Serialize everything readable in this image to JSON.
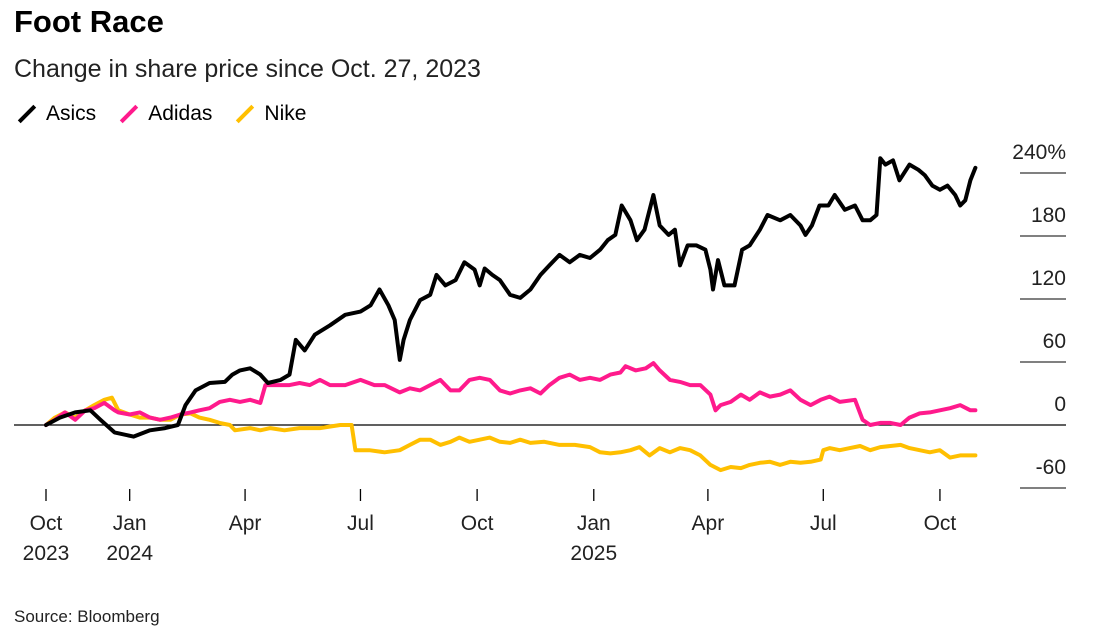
{
  "colors": {
    "Asics": "#000000",
    "Adidas": "#ff1a8c",
    "Nike": "#ffbf00"
  },
  "chart_data": {
    "type": "line",
    "title": "Foot Race",
    "subtitle": "Change in share price since Oct. 27, 2023",
    "source": "Source: Bloomberg",
    "x_unit": "days since Oct. 27, 2023",
    "ylabel": "",
    "ylim": [
      -60,
      240
    ],
    "yticks": [
      {
        "v": 240,
        "label": "240%"
      },
      {
        "v": 180,
        "label": "180"
      },
      {
        "v": 120,
        "label": "120"
      },
      {
        "v": 60,
        "label": "60"
      },
      {
        "v": 0,
        "label": "0"
      },
      {
        "v": -60,
        "label": "-60"
      }
    ],
    "xticks": [
      {
        "d": 0,
        "l1": "Oct",
        "l2": "2023"
      },
      {
        "d": 66,
        "l1": "Jan",
        "l2": "2024"
      },
      {
        "d": 157,
        "l1": "Apr",
        "l2": ""
      },
      {
        "d": 248,
        "l1": "Jul",
        "l2": ""
      },
      {
        "d": 340,
        "l1": "Oct",
        "l2": ""
      },
      {
        "d": 432,
        "l1": "Jan",
        "l2": "2025"
      },
      {
        "d": 522,
        "l1": "Apr",
        "l2": ""
      },
      {
        "d": 613,
        "l1": "Jul",
        "l2": ""
      },
      {
        "d": 705,
        "l1": "Oct",
        "l2": ""
      }
    ],
    "legend": [
      "Asics",
      "Adidas",
      "Nike"
    ],
    "legend_position": "top-left",
    "series": [
      {
        "name": "Nike",
        "points": [
          [
            0,
            0
          ],
          [
            7,
            7
          ],
          [
            15,
            12
          ],
          [
            23,
            7
          ],
          [
            31,
            14
          ],
          [
            38,
            19
          ],
          [
            46,
            24
          ],
          [
            52,
            26
          ],
          [
            57,
            14
          ],
          [
            66,
            10
          ],
          [
            74,
            7
          ],
          [
            82,
            7
          ],
          [
            90,
            5
          ],
          [
            98,
            5
          ],
          [
            106,
            10
          ],
          [
            114,
            11
          ],
          [
            121,
            7
          ],
          [
            129,
            5
          ],
          [
            137,
            2
          ],
          [
            145,
            0
          ],
          [
            149,
            -5
          ],
          [
            161,
            -3
          ],
          [
            169,
            -5
          ],
          [
            177,
            -3
          ],
          [
            188,
            -5
          ],
          [
            200,
            -3
          ],
          [
            216,
            -3
          ],
          [
            232,
            0
          ],
          [
            241,
            0
          ],
          [
            244,
            -24
          ],
          [
            255,
            -24
          ],
          [
            267,
            -26
          ],
          [
            279,
            -24
          ],
          [
            287,
            -19
          ],
          [
            295,
            -14
          ],
          [
            303,
            -14
          ],
          [
            311,
            -19
          ],
          [
            319,
            -16
          ],
          [
            326,
            -12
          ],
          [
            334,
            -16
          ],
          [
            342,
            -14
          ],
          [
            350,
            -12
          ],
          [
            358,
            -16
          ],
          [
            366,
            -17
          ],
          [
            374,
            -14
          ],
          [
            382,
            -17
          ],
          [
            393,
            -16
          ],
          [
            405,
            -19
          ],
          [
            417,
            -19
          ],
          [
            429,
            -21
          ],
          [
            437,
            -26
          ],
          [
            445,
            -27
          ],
          [
            453,
            -26
          ],
          [
            461,
            -24
          ],
          [
            468,
            -21
          ],
          [
            476,
            -29
          ],
          [
            484,
            -22
          ],
          [
            492,
            -26
          ],
          [
            500,
            -22
          ],
          [
            508,
            -24
          ],
          [
            516,
            -29
          ],
          [
            524,
            -38
          ],
          [
            532,
            -43
          ],
          [
            540,
            -40
          ],
          [
            548,
            -41
          ],
          [
            555,
            -38
          ],
          [
            563,
            -36
          ],
          [
            571,
            -35
          ],
          [
            579,
            -38
          ],
          [
            587,
            -35
          ],
          [
            595,
            -36
          ],
          [
            603,
            -35
          ],
          [
            611,
            -33
          ],
          [
            613,
            -24
          ],
          [
            618,
            -22
          ],
          [
            626,
            -24
          ],
          [
            634,
            -22
          ],
          [
            642,
            -20
          ],
          [
            650,
            -24
          ],
          [
            658,
            -21
          ],
          [
            666,
            -20
          ],
          [
            674,
            -19
          ],
          [
            681,
            -22
          ],
          [
            689,
            -24
          ],
          [
            697,
            -26
          ],
          [
            705,
            -24
          ],
          [
            713,
            -31
          ],
          [
            721,
            -29
          ],
          [
            729,
            -29
          ],
          [
            733,
            -29
          ]
        ]
      },
      {
        "name": "Adidas",
        "points": [
          [
            0,
            0
          ],
          [
            7,
            5
          ],
          [
            15,
            12
          ],
          [
            23,
            5
          ],
          [
            31,
            14
          ],
          [
            38,
            16
          ],
          [
            46,
            21
          ],
          [
            54,
            14
          ],
          [
            57,
            12
          ],
          [
            66,
            10
          ],
          [
            74,
            12
          ],
          [
            82,
            7
          ],
          [
            90,
            5
          ],
          [
            98,
            7
          ],
          [
            106,
            10
          ],
          [
            114,
            12
          ],
          [
            121,
            14
          ],
          [
            129,
            16
          ],
          [
            137,
            22
          ],
          [
            145,
            24
          ],
          [
            153,
            22
          ],
          [
            161,
            24
          ],
          [
            169,
            21
          ],
          [
            173,
            38
          ],
          [
            181,
            38
          ],
          [
            192,
            38
          ],
          [
            200,
            40
          ],
          [
            208,
            38
          ],
          [
            216,
            43
          ],
          [
            224,
            38
          ],
          [
            236,
            38
          ],
          [
            248,
            43
          ],
          [
            259,
            38
          ],
          [
            267,
            38
          ],
          [
            279,
            31
          ],
          [
            287,
            35
          ],
          [
            295,
            33
          ],
          [
            303,
            38
          ],
          [
            311,
            43
          ],
          [
            319,
            33
          ],
          [
            326,
            33
          ],
          [
            334,
            43
          ],
          [
            342,
            45
          ],
          [
            350,
            43
          ],
          [
            358,
            33
          ],
          [
            366,
            30
          ],
          [
            374,
            33
          ],
          [
            382,
            35
          ],
          [
            390,
            30
          ],
          [
            397,
            38
          ],
          [
            405,
            45
          ],
          [
            413,
            48
          ],
          [
            421,
            43
          ],
          [
            429,
            45
          ],
          [
            437,
            43
          ],
          [
            445,
            48
          ],
          [
            453,
            50
          ],
          [
            457,
            56
          ],
          [
            465,
            52
          ],
          [
            473,
            54
          ],
          [
            479,
            59
          ],
          [
            484,
            52
          ],
          [
            492,
            43
          ],
          [
            500,
            41
          ],
          [
            508,
            38
          ],
          [
            516,
            38
          ],
          [
            524,
            29
          ],
          [
            528,
            14
          ],
          [
            532,
            19
          ],
          [
            540,
            22
          ],
          [
            548,
            29
          ],
          [
            555,
            24
          ],
          [
            563,
            31
          ],
          [
            571,
            27
          ],
          [
            579,
            29
          ],
          [
            587,
            33
          ],
          [
            595,
            24
          ],
          [
            603,
            19
          ],
          [
            611,
            24
          ],
          [
            618,
            27
          ],
          [
            626,
            22
          ],
          [
            638,
            24
          ],
          [
            644,
            5
          ],
          [
            650,
            0
          ],
          [
            658,
            2
          ],
          [
            666,
            2
          ],
          [
            674,
            0
          ],
          [
            681,
            7
          ],
          [
            689,
            11
          ],
          [
            697,
            12
          ],
          [
            705,
            14
          ],
          [
            713,
            16
          ],
          [
            721,
            19
          ],
          [
            729,
            14
          ],
          [
            733,
            14
          ]
        ]
      },
      {
        "name": "Asics",
        "points": [
          [
            0,
            0
          ],
          [
            11,
            7
          ],
          [
            23,
            12
          ],
          [
            35,
            14
          ],
          [
            43,
            5
          ],
          [
            54,
            -7
          ],
          [
            69,
            -11
          ],
          [
            82,
            -5
          ],
          [
            94,
            -3
          ],
          [
            104,
            0
          ],
          [
            110,
            19
          ],
          [
            118,
            33
          ],
          [
            129,
            40
          ],
          [
            141,
            41
          ],
          [
            147,
            48
          ],
          [
            153,
            52
          ],
          [
            161,
            54
          ],
          [
            169,
            48
          ],
          [
            175,
            40
          ],
          [
            185,
            43
          ],
          [
            192,
            48
          ],
          [
            197,
            81
          ],
          [
            204,
            71
          ],
          [
            212,
            86
          ],
          [
            224,
            95
          ],
          [
            236,
            105
          ],
          [
            248,
            108
          ],
          [
            256,
            114
          ],
          [
            263,
            129
          ],
          [
            270,
            114
          ],
          [
            275,
            100
          ],
          [
            279,
            62
          ],
          [
            282,
            81
          ],
          [
            287,
            100
          ],
          [
            295,
            119
          ],
          [
            303,
            124
          ],
          [
            308,
            143
          ],
          [
            315,
            133
          ],
          [
            323,
            138
          ],
          [
            330,
            155
          ],
          [
            338,
            148
          ],
          [
            342,
            133
          ],
          [
            346,
            149
          ],
          [
            352,
            143
          ],
          [
            358,
            138
          ],
          [
            366,
            124
          ],
          [
            374,
            121
          ],
          [
            382,
            129
          ],
          [
            390,
            143
          ],
          [
            397,
            152
          ],
          [
            405,
            162
          ],
          [
            413,
            155
          ],
          [
            421,
            162
          ],
          [
            429,
            159
          ],
          [
            437,
            167
          ],
          [
            443,
            176
          ],
          [
            449,
            181
          ],
          [
            454,
            209
          ],
          [
            461,
            195
          ],
          [
            466,
            176
          ],
          [
            472,
            186
          ],
          [
            479,
            219
          ],
          [
            484,
            190
          ],
          [
            491,
            181
          ],
          [
            496,
            186
          ],
          [
            500,
            152
          ],
          [
            506,
            171
          ],
          [
            513,
            171
          ],
          [
            520,
            167
          ],
          [
            524,
            148
          ],
          [
            526,
            129
          ],
          [
            530,
            157
          ],
          [
            535,
            133
          ],
          [
            543,
            133
          ],
          [
            549,
            167
          ],
          [
            555,
            171
          ],
          [
            563,
            186
          ],
          [
            569,
            200
          ],
          [
            579,
            195
          ],
          [
            587,
            200
          ],
          [
            595,
            190
          ],
          [
            599,
            181
          ],
          [
            604,
            190
          ],
          [
            610,
            209
          ],
          [
            617,
            209
          ],
          [
            622,
            219
          ],
          [
            630,
            205
          ],
          [
            638,
            209
          ],
          [
            644,
            195
          ],
          [
            650,
            195
          ],
          [
            655,
            200
          ],
          [
            658,
            254
          ],
          [
            662,
            248
          ],
          [
            668,
            252
          ],
          [
            673,
            233
          ],
          [
            681,
            248
          ],
          [
            688,
            243
          ],
          [
            693,
            238
          ],
          [
            699,
            228
          ],
          [
            705,
            224
          ],
          [
            711,
            228
          ],
          [
            717,
            219
          ],
          [
            721,
            209
          ],
          [
            725,
            214
          ],
          [
            729,
            233
          ],
          [
            733,
            245
          ]
        ]
      }
    ]
  }
}
